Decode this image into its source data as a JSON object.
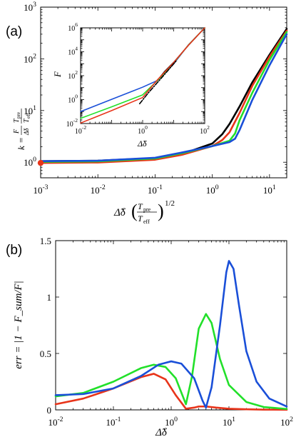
{
  "colors": {
    "black": "#000000",
    "red": "#e8341a",
    "green": "#22e02a",
    "blue": "#1a4fd8"
  },
  "chart_data": [
    {
      "panel": "(a)",
      "type": "line",
      "xscale": "log",
      "yscale": "log",
      "xlim": [
        0.001,
        20
      ],
      "ylim": [
        0.5,
        1000
      ],
      "xticks": [
        "10^-3",
        "10^-2",
        "10^-1",
        "10^0",
        "10^1"
      ],
      "yticks": [
        "10^0",
        "10^1",
        "10^2",
        "10^3"
      ],
      "xlabel": "Δ̃δ (T_pre / T_eff)^1/2",
      "ylabel": "k = (F/Δ̃δ)(T_pre/T_eff)",
      "grid": false,
      "marker": {
        "x": 0.001,
        "y": 0.97,
        "color": "red"
      },
      "series": [
        {
          "color": "black",
          "x": [
            0.001,
            0.01,
            0.1,
            0.3,
            1,
            1.5,
            2,
            3,
            5,
            10,
            20
          ],
          "y": [
            1.05,
            1.07,
            1.2,
            1.45,
            2.3,
            3.5,
            5.5,
            12,
            35,
            120,
            380
          ]
        },
        {
          "color": "red",
          "x": [
            0.001,
            0.01,
            0.1,
            0.3,
            1,
            1.5,
            2,
            3,
            5,
            10,
            20
          ],
          "y": [
            0.97,
            0.99,
            1.12,
            1.4,
            2.05,
            2.7,
            3.8,
            9,
            30,
            110,
            350
          ]
        },
        {
          "color": "green",
          "x": [
            0.001,
            0.01,
            0.1,
            0.3,
            1,
            2,
            2.5,
            3,
            5,
            10,
            20
          ],
          "y": [
            1.02,
            1.04,
            1.18,
            1.5,
            2.05,
            2.6,
            3.6,
            6.5,
            22,
            95,
            330
          ]
        },
        {
          "color": "blue",
          "x": [
            0.001,
            0.01,
            0.1,
            0.3,
            1,
            2,
            2.5,
            3,
            5,
            10,
            20
          ],
          "y": [
            1.05,
            1.07,
            1.22,
            1.55,
            2.05,
            2.45,
            2.85,
            4.2,
            16,
            75,
            300
          ]
        }
      ],
      "inset": {
        "xscale": "log",
        "yscale": "log",
        "xlim": [
          0.01,
          100
        ],
        "ylim": [
          0.01,
          1000000
        ],
        "xticks": [
          "10^-2",
          "10^0",
          "10^2"
        ],
        "yticks": [
          "10^-2",
          "10^0",
          "10^2",
          "10^4",
          "10^6"
        ],
        "xlabel": "Δ̃δ",
        "ylabel": "F",
        "series": [
          {
            "color": "black",
            "x": [
              3,
              5,
              10,
              30,
              100
            ],
            "y": [
              40,
              210,
              1300,
              35000,
              1000000
            ]
          },
          {
            "color": "blue",
            "x": [
              0.01,
              0.1,
              1,
              3,
              10,
              30,
              100
            ],
            "y": [
              0.1,
              1.05,
              11,
              40,
              980,
              38000,
              1000000
            ]
          },
          {
            "color": "green",
            "x": [
              0.01,
              0.1,
              1,
              3,
              10,
              30,
              100
            ],
            "y": [
              0.027,
              0.25,
              2.5,
              40,
              1150,
              37000,
              1000000
            ]
          },
          {
            "color": "red",
            "x": [
              0.01,
              0.1,
              1,
              2,
              3,
              10,
              30,
              100
            ],
            "y": [
              0.011,
              0.12,
              1.5,
              13,
              45,
              1250,
              36000,
              1000000
            ]
          },
          {
            "color": "black",
            "style": "dashdot",
            "x": [
              0.8,
              1.5,
              3,
              6,
              12
            ],
            "y": [
              0.45,
              3.5,
              27,
              210,
              1700
            ]
          }
        ]
      }
    },
    {
      "panel": "(b)",
      "type": "line",
      "xscale": "log",
      "yscale": "linear",
      "xlim": [
        0.01,
        100
      ],
      "ylim": [
        0,
        1.5
      ],
      "xticks": [
        "10^-2",
        "10^-1",
        "10^0",
        "10^1",
        "10^2"
      ],
      "yticks": [
        "0",
        "0.5",
        "1",
        "1.5"
      ],
      "xlabel": "Δ̃δ",
      "ylabel": "err = |1 − F_sum/F|",
      "grid": false,
      "series": [
        {
          "color": "red",
          "x": [
            0.01,
            0.03,
            0.1,
            0.3,
            0.5,
            0.8,
            1.2,
            1.8,
            2.5,
            3,
            4,
            6,
            10,
            20,
            40,
            100
          ],
          "y": [
            0.05,
            0.1,
            0.19,
            0.29,
            0.32,
            0.27,
            0.13,
            0.01,
            0.02,
            0.03,
            0.03,
            0.02,
            0.01,
            0.005,
            0.002,
            0.001
          ]
        },
        {
          "color": "green",
          "x": [
            0.01,
            0.03,
            0.1,
            0.3,
            0.5,
            0.8,
            1.2,
            1.8,
            2.3,
            3,
            4,
            5,
            7,
            10,
            20,
            40,
            100
          ],
          "y": [
            0.12,
            0.15,
            0.25,
            0.37,
            0.4,
            0.38,
            0.28,
            0.05,
            0.3,
            0.72,
            0.85,
            0.77,
            0.45,
            0.22,
            0.07,
            0.025,
            0.008
          ]
        },
        {
          "color": "blue",
          "x": [
            0.01,
            0.03,
            0.1,
            0.3,
            0.6,
            1,
            1.5,
            2.5,
            3.5,
            4,
            5,
            7,
            9,
            10,
            12,
            15,
            20,
            30,
            50,
            100
          ],
          "y": [
            0.13,
            0.14,
            0.19,
            0.3,
            0.4,
            0.43,
            0.41,
            0.28,
            0.08,
            0.02,
            0.2,
            0.75,
            1.22,
            1.32,
            1.25,
            0.92,
            0.52,
            0.25,
            0.1,
            0.03
          ]
        }
      ]
    }
  ]
}
